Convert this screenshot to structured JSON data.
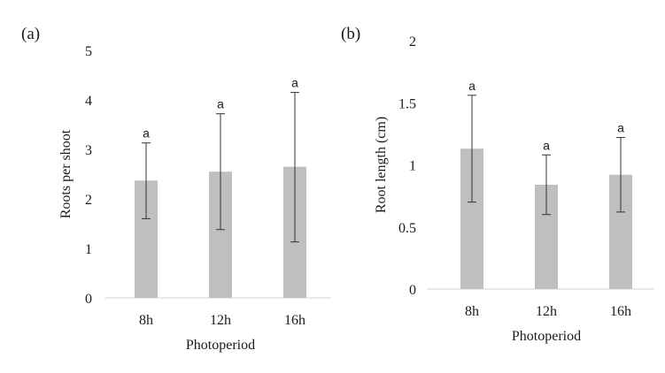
{
  "chart_data": [
    {
      "type": "bar",
      "panel_label": "(a)",
      "categories": [
        "8h",
        "12h",
        "16h"
      ],
      "values": [
        2.37,
        2.55,
        2.65
      ],
      "error_low": [
        1.6,
        1.38,
        1.13
      ],
      "error_high": [
        3.13,
        3.72,
        4.15
      ],
      "letters": [
        "a",
        "a",
        "a"
      ],
      "xlabel": "Photoperiod",
      "ylabel": "Roots per shoot",
      "ylim": [
        0,
        5
      ],
      "yticks": [
        "0",
        "1",
        "2",
        "3",
        "4",
        "5"
      ],
      "ytick_values": [
        0,
        1,
        2,
        3,
        4,
        5
      ],
      "grid": false,
      "bar_color": "#bfbfbf"
    },
    {
      "type": "bar",
      "panel_label": "(b)",
      "categories": [
        "8h",
        "12h",
        "16h"
      ],
      "values": [
        1.13,
        0.84,
        0.92
      ],
      "error_low": [
        0.7,
        0.6,
        0.62
      ],
      "error_high": [
        1.56,
        1.08,
        1.22
      ],
      "letters": [
        "a",
        "a",
        "a"
      ],
      "xlabel": "Photoperiod",
      "ylabel": "Root length (cm)",
      "ylim": [
        0,
        2
      ],
      "yticks": [
        "0",
        "0.5",
        "1",
        "1.5",
        "2"
      ],
      "ytick_values": [
        0,
        0.5,
        1,
        1.5,
        2
      ],
      "grid": false,
      "bar_color": "#bfbfbf"
    }
  ]
}
